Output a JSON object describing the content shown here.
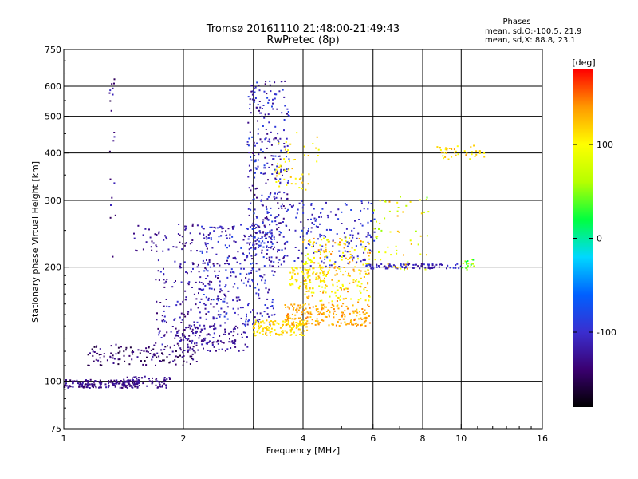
{
  "chart_data": {
    "type": "scatter",
    "title": "Tromsø 20161110 21:48:00-21:49:43",
    "subtitle": "RwPretec (8p)",
    "xlabel": "Frequency [MHz]",
    "ylabel": "Stationary phase Virtual Height [km]",
    "x_scale": "log",
    "y_scale": "log",
    "xlim": [
      1,
      16
    ],
    "ylim": [
      75,
      750
    ],
    "xticks": [
      1,
      2,
      4,
      6,
      8,
      10,
      16
    ],
    "xtick_labels": [
      "1",
      "2",
      "4",
      "6",
      "8",
      "10",
      "16"
    ],
    "xgrid": [
      1,
      2,
      3,
      4,
      6,
      8,
      10
    ],
    "yticks": [
      75,
      100,
      200,
      300,
      400,
      500,
      600,
      750
    ],
    "ytick_labels": [
      "75",
      "100",
      "200",
      "300",
      "400",
      "500",
      "600",
      "750"
    ],
    "ygrid": [
      100,
      200,
      300,
      400,
      500,
      600
    ],
    "grid": true,
    "stats": {
      "header": "Phases",
      "line_o": "mean, sd,O:-100.5, 21.9",
      "line_x": "mean, sd,X:  88.8, 23.1"
    },
    "colorbar": {
      "label": "[deg]",
      "range": [
        -180,
        180
      ],
      "ticks": [
        100,
        0,
        -100
      ],
      "tick_labels": [
        "100",
        "0",
        "-100"
      ],
      "colors": [
        "#000000",
        "#3a0070",
        "#3a2ecf",
        "#0060ff",
        "#00d8ff",
        "#00ff40",
        "#b6ff00",
        "#ffff00",
        "#ff9900",
        "#ff0000"
      ]
    },
    "series": [
      {
        "x_range": [
          1.0,
          1.55
        ],
        "y_range": [
          96,
          101
        ],
        "phase_range": [
          -150,
          -110
        ],
        "count": 170
      },
      {
        "x_range": [
          1.4,
          1.85
        ],
        "y_range": [
          96,
          103
        ],
        "phase_range": [
          -140,
          -120
        ],
        "count": 60
      },
      {
        "x_range": [
          1.15,
          2.2
        ],
        "y_range": [
          110,
          125
        ],
        "phase_range": [
          -160,
          -120
        ],
        "count": 130
      },
      {
        "x_range": [
          1.9,
          2.9
        ],
        "y_range": [
          120,
          140
        ],
        "phase_range": [
          -140,
          -110
        ],
        "count": 120
      },
      {
        "x_range": [
          1.7,
          2.5
        ],
        "y_range": [
          125,
          210
        ],
        "phase_range": [
          -145,
          -95
        ],
        "count": 170
      },
      {
        "x_range": [
          2.2,
          3.4
        ],
        "y_range": [
          140,
          260
        ],
        "phase_range": [
          -130,
          -80
        ],
        "count": 300
      },
      {
        "x_range": [
          2.9,
          3.7
        ],
        "y_range": [
          200,
          620
        ],
        "phase_range": [
          -140,
          -80
        ],
        "count": 340
      },
      {
        "x_range": [
          1.5,
          2.3
        ],
        "y_range": [
          220,
          260
        ],
        "phase_range": [
          -140,
          -110
        ],
        "count": 60
      },
      {
        "x_range": [
          3.0,
          4.1
        ],
        "y_range": [
          132,
          145
        ],
        "phase_range": [
          100,
          130
        ],
        "count": 130
      },
      {
        "x_range": [
          3.6,
          5.9
        ],
        "y_range": [
          140,
          160
        ],
        "phase_range": [
          115,
          150
        ],
        "count": 200
      },
      {
        "x_range": [
          4.0,
          5.9
        ],
        "y_range": [
          160,
          240
        ],
        "phase_range": [
          80,
          150
        ],
        "count": 260
      },
      {
        "x_range": [
          3.7,
          4.6
        ],
        "y_range": [
          175,
          200
        ],
        "phase_range": [
          95,
          120
        ],
        "count": 60
      },
      {
        "x_range": [
          3.7,
          6.1
        ],
        "y_range": [
          200,
          300
        ],
        "phase_range": [
          -120,
          -80
        ],
        "count": 160
      },
      {
        "x_range": [
          3.4,
          4.4
        ],
        "y_range": [
          320,
          470
        ],
        "phase_range": [
          90,
          130
        ],
        "count": 50
      },
      {
        "x_range": [
          5.9,
          10.0
        ],
        "y_range": [
          198,
          204
        ],
        "phase_range": [
          -130,
          -90
        ],
        "count": 90
      },
      {
        "x_range": [
          10.0,
          10.8
        ],
        "y_range": [
          195,
          210
        ],
        "phase_range": [
          10,
          90
        ],
        "count": 20
      },
      {
        "x_range": [
          6.0,
          8.3
        ],
        "y_range": [
          195,
          310
        ],
        "phase_range": [
          40,
          140
        ],
        "count": 60
      },
      {
        "x_range": [
          8.7,
          11.5
        ],
        "y_range": [
          385,
          420
        ],
        "phase_range": [
          90,
          140
        ],
        "count": 40
      },
      {
        "x_range": [
          1.3,
          1.35
        ],
        "y_range": [
          210,
          650
        ],
        "phase_range": [
          -160,
          -100
        ],
        "count": 20
      }
    ]
  }
}
